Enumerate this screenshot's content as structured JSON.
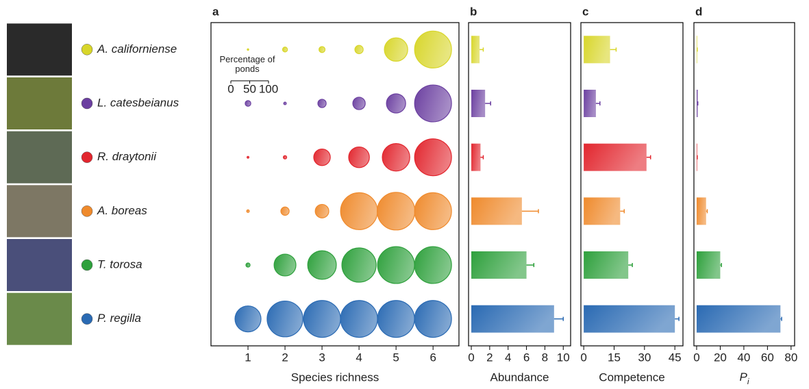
{
  "chart_data": [
    {
      "type": "bubble",
      "title": "a",
      "x_label": "Species richness",
      "x": [
        1,
        2,
        3,
        4,
        5,
        6
      ],
      "xlim": [
        0,
        6.7
      ],
      "xticks": [
        1,
        2,
        3,
        4,
        5,
        6
      ],
      "size_legend": {
        "title": "Percentage of ponds",
        "ticks": [
          0,
          50,
          100
        ]
      },
      "series": [
        {
          "name": "A. californiense",
          "color": "#d8d62a",
          "sizes": [
            4,
            13,
            16,
            22,
            62,
            98
          ]
        },
        {
          "name": "L. catesbeianus",
          "color": "#6b3fa0",
          "sizes": [
            15,
            7,
            22,
            33,
            51,
            98
          ]
        },
        {
          "name": "R. draytonii",
          "color": "#e2262e",
          "sizes": [
            5,
            9,
            44,
            55,
            73,
            98
          ]
        },
        {
          "name": "A. boreas",
          "color": "#ef8a2c",
          "sizes": [
            7,
            22,
            36,
            98,
            100,
            98
          ]
        },
        {
          "name": "T. torosa",
          "color": "#2ea03c",
          "sizes": [
            11,
            58,
            76,
            91,
            98,
            98
          ]
        },
        {
          "name": "P. regilla",
          "color": "#2a6ab3",
          "sizes": [
            69,
            95,
            98,
            98,
            98,
            98
          ]
        }
      ]
    },
    {
      "type": "bar",
      "title": "b",
      "x_label": "Abundance",
      "values": [
        0.9,
        1.5,
        1.0,
        5.5,
        6.0,
        9.0
      ],
      "errors": [
        0.4,
        0.6,
        0.3,
        1.8,
        0.8,
        1.0
      ],
      "xlim": [
        -0.3,
        10.8
      ],
      "xticks": [
        0,
        2,
        4,
        6,
        8,
        10
      ]
    },
    {
      "type": "bar",
      "title": "c",
      "x_label": "Competence",
      "values": [
        13,
        6,
        31,
        18,
        22,
        45
      ],
      "errors": [
        3,
        2,
        2,
        2,
        2,
        2
      ],
      "xlim": [
        -1.4,
        49
      ],
      "xticks": [
        0,
        15,
        30,
        45
      ]
    },
    {
      "type": "bar",
      "title": "d",
      "x_label": "P",
      "x_label_subscript": "i",
      "values": [
        0.5,
        1,
        0.5,
        8,
        20,
        71
      ],
      "errors": [
        0,
        0,
        0,
        1,
        1,
        1
      ],
      "xlim": [
        -2.3,
        83
      ],
      "xticks": [
        0,
        20,
        40,
        60,
        80
      ]
    }
  ]
}
